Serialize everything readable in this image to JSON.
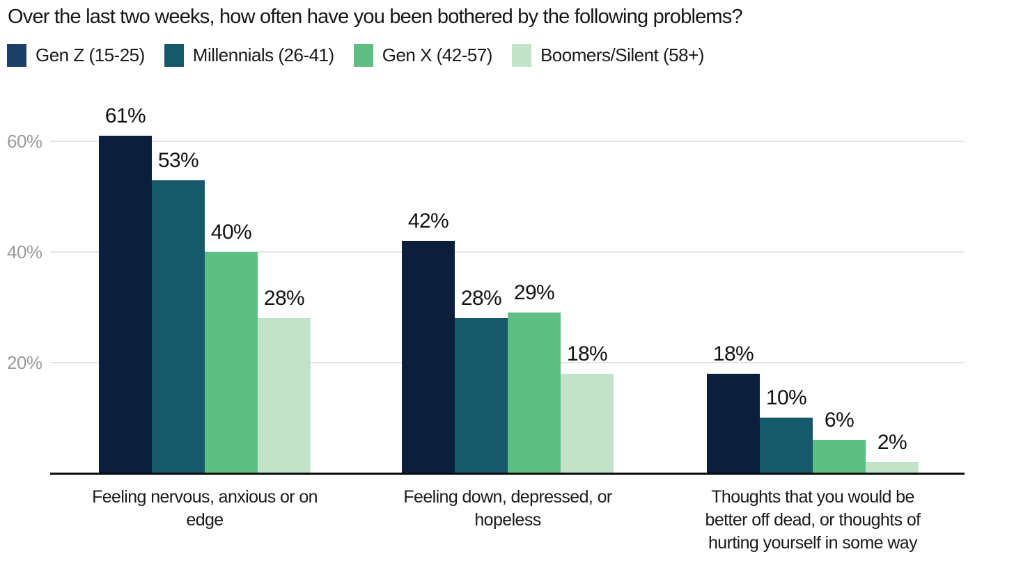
{
  "chart_data": {
    "type": "bar",
    "title": "Over the last two weeks, how often have you been bothered by the following problems?",
    "legend_position": "top",
    "grid": true,
    "ylim": [
      0,
      65
    ],
    "y_axis": {
      "ticks": [
        {
          "label": "20%",
          "value": 20
        },
        {
          "label": "40%",
          "value": 40
        },
        {
          "label": "60%",
          "value": 60
        }
      ]
    },
    "categories": [
      {
        "label": "Feeling nervous, anxious or on edge",
        "lines": [
          "Feeling nervous, anxious or on",
          "edge"
        ]
      },
      {
        "label": "Feeling down, depressed, or hopeless",
        "lines": [
          "Feeling down, depressed, or",
          "hopeless"
        ]
      },
      {
        "label": "Thoughts that you would be better off dead, or thoughts of hurting yourself in some way",
        "lines": [
          "Thoughts that you would be",
          "better off dead, or thoughts of",
          "hurting yourself in some way"
        ]
      }
    ],
    "series": [
      {
        "name": "Gen Z (15-25)",
        "color": "#0b1f3d",
        "swatch_color": "#1c3f66",
        "values": [
          61,
          42,
          18
        ],
        "labels": [
          "61%",
          "42%",
          "18%"
        ]
      },
      {
        "name": "Millennials (26-41)",
        "color": "#16596a",
        "swatch_color": "#16596a",
        "values": [
          53,
          28,
          10
        ],
        "labels": [
          "53%",
          "28%",
          "10%"
        ]
      },
      {
        "name": "Gen X (42-57)",
        "color": "#5fbe84",
        "swatch_color": "#5fbe84",
        "values": [
          40,
          29,
          6
        ],
        "labels": [
          "40%",
          "29%",
          "6%"
        ]
      },
      {
        "name": "Boomers/Silent (58+)",
        "color": "#c3e2ca",
        "swatch_color": "#c3e2ca",
        "values": [
          28,
          18,
          2
        ],
        "labels": [
          "28%",
          "18%",
          "2%"
        ]
      }
    ]
  },
  "colors": {
    "background": "#ffffff",
    "axis_line": "#0b0b0b",
    "gridline": "#e4e4e4",
    "tick_text": "#9b9b9b",
    "text": "#161616"
  }
}
